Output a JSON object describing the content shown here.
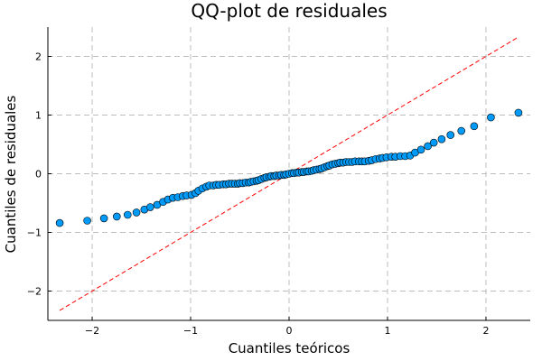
{
  "chart_data": {
    "type": "scatter",
    "title": "QQ-plot de residuales",
    "xlabel": "Cuantiles teóricos",
    "ylabel": "Cuantiles de residuales",
    "xlim": [
      -2.45,
      2.45
    ],
    "ylim": [
      -2.5,
      2.5
    ],
    "xticks": [
      -2,
      -1,
      0,
      1,
      2
    ],
    "yticks": [
      -2,
      -1,
      0,
      1,
      2
    ],
    "tick_labels": [
      "−2",
      "−1",
      "0",
      "1",
      "2"
    ],
    "grid": true,
    "legend": "none",
    "point_color": "#009af9",
    "reference_line": {
      "from": [
        -2.33,
        -2.33
      ],
      "to": [
        2.33,
        2.33
      ],
      "color": "#ff0000",
      "style": "dashed"
    },
    "points": [
      [
        -2.33,
        -0.84
      ],
      [
        -2.05,
        -0.8
      ],
      [
        -1.88,
        -0.76
      ],
      [
        -1.75,
        -0.73
      ],
      [
        -1.64,
        -0.7
      ],
      [
        -1.55,
        -0.66
      ],
      [
        -1.47,
        -0.61
      ],
      [
        -1.41,
        -0.57
      ],
      [
        -1.34,
        -0.53
      ],
      [
        -1.28,
        -0.48
      ],
      [
        -1.23,
        -0.44
      ],
      [
        -1.18,
        -0.41
      ],
      [
        -1.13,
        -0.4
      ],
      [
        -1.08,
        -0.38
      ],
      [
        -1.04,
        -0.37
      ],
      [
        -0.99,
        -0.36
      ],
      [
        -0.95,
        -0.33
      ],
      [
        -0.92,
        -0.29
      ],
      [
        -0.88,
        -0.25
      ],
      [
        -0.84,
        -0.22
      ],
      [
        -0.81,
        -0.2
      ],
      [
        -0.77,
        -0.2
      ],
      [
        -0.74,
        -0.19
      ],
      [
        -0.71,
        -0.19
      ],
      [
        -0.67,
        -0.18
      ],
      [
        -0.64,
        -0.18
      ],
      [
        -0.61,
        -0.17
      ],
      [
        -0.58,
        -0.17
      ],
      [
        -0.55,
        -0.17
      ],
      [
        -0.52,
        -0.17
      ],
      [
        -0.5,
        -0.16
      ],
      [
        -0.47,
        -0.16
      ],
      [
        -0.44,
        -0.15
      ],
      [
        -0.41,
        -0.15
      ],
      [
        -0.39,
        -0.14
      ],
      [
        -0.36,
        -0.13
      ],
      [
        -0.33,
        -0.12
      ],
      [
        -0.31,
        -0.11
      ],
      [
        -0.28,
        -0.09
      ],
      [
        -0.25,
        -0.07
      ],
      [
        -0.23,
        -0.06
      ],
      [
        -0.2,
        -0.05
      ],
      [
        -0.18,
        -0.04
      ],
      [
        -0.15,
        -0.04
      ],
      [
        -0.13,
        -0.03
      ],
      [
        -0.1,
        -0.03
      ],
      [
        -0.08,
        -0.02
      ],
      [
        -0.05,
        -0.02
      ],
      [
        -0.03,
        -0.01
      ],
      [
        0.0,
        0.0
      ],
      [
        0.03,
        0.01
      ],
      [
        0.05,
        0.01
      ],
      [
        0.08,
        0.02
      ],
      [
        0.1,
        0.02
      ],
      [
        0.13,
        0.03
      ],
      [
        0.15,
        0.03
      ],
      [
        0.18,
        0.04
      ],
      [
        0.2,
        0.04
      ],
      [
        0.23,
        0.05
      ],
      [
        0.25,
        0.06
      ],
      [
        0.28,
        0.07
      ],
      [
        0.31,
        0.08
      ],
      [
        0.33,
        0.09
      ],
      [
        0.36,
        0.11
      ],
      [
        0.39,
        0.13
      ],
      [
        0.41,
        0.14
      ],
      [
        0.44,
        0.16
      ],
      [
        0.47,
        0.17
      ],
      [
        0.5,
        0.18
      ],
      [
        0.52,
        0.19
      ],
      [
        0.55,
        0.19
      ],
      [
        0.58,
        0.2
      ],
      [
        0.61,
        0.2
      ],
      [
        0.64,
        0.2
      ],
      [
        0.67,
        0.21
      ],
      [
        0.71,
        0.21
      ],
      [
        0.74,
        0.21
      ],
      [
        0.77,
        0.21
      ],
      [
        0.81,
        0.22
      ],
      [
        0.84,
        0.23
      ],
      [
        0.88,
        0.25
      ],
      [
        0.92,
        0.26
      ],
      [
        0.95,
        0.27
      ],
      [
        0.99,
        0.28
      ],
      [
        1.04,
        0.29
      ],
      [
        1.08,
        0.29
      ],
      [
        1.13,
        0.3
      ],
      [
        1.18,
        0.3
      ],
      [
        1.23,
        0.31
      ],
      [
        1.28,
        0.36
      ],
      [
        1.34,
        0.41
      ],
      [
        1.41,
        0.47
      ],
      [
        1.47,
        0.53
      ],
      [
        1.55,
        0.59
      ],
      [
        1.64,
        0.66
      ],
      [
        1.75,
        0.73
      ],
      [
        1.88,
        0.81
      ],
      [
        2.05,
        0.96
      ],
      [
        2.33,
        1.04
      ]
    ]
  }
}
